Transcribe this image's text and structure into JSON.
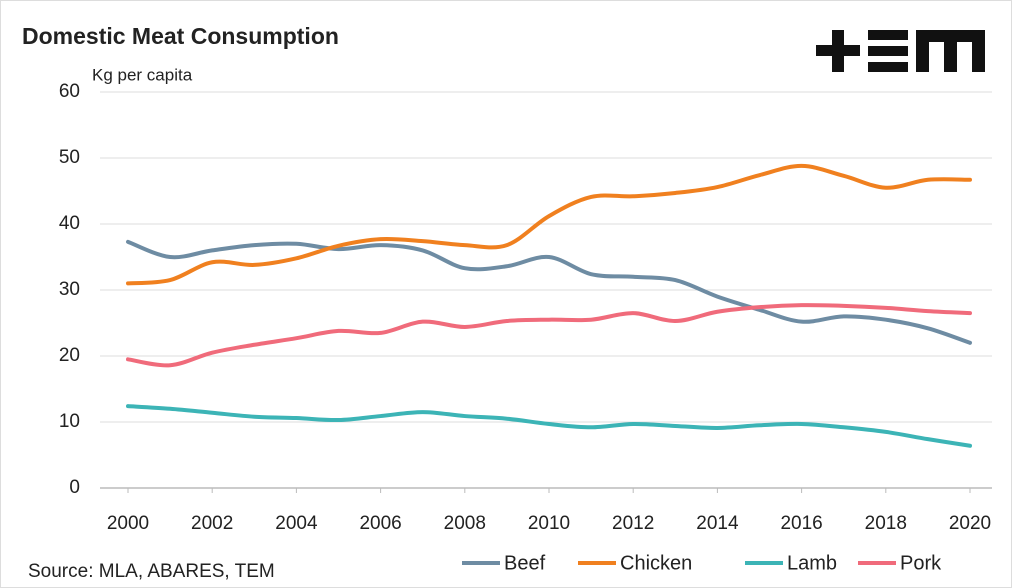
{
  "chart_data": {
    "type": "line",
    "title": "Domestic Meat Consumption",
    "y_label": "Kg per capita",
    "source": "Source: MLA, ABARES, TEM",
    "x": [
      2000,
      2001,
      2002,
      2003,
      2004,
      2005,
      2006,
      2007,
      2008,
      2009,
      2010,
      2011,
      2012,
      2013,
      2014,
      2015,
      2016,
      2017,
      2018,
      2019,
      2020
    ],
    "xlim": [
      2000,
      2020
    ],
    "xticks": [
      2000,
      2002,
      2004,
      2006,
      2008,
      2010,
      2012,
      2014,
      2016,
      2018,
      2020
    ],
    "ylim": [
      0,
      60
    ],
    "yticks": [
      0,
      10,
      20,
      30,
      40,
      50,
      60
    ],
    "grid": true,
    "legend": "bottom",
    "series": [
      {
        "name": "Beef",
        "color": "#6e8ca3",
        "values": [
          37.3,
          35,
          36,
          36.8,
          37,
          36.2,
          36.8,
          36,
          33.3,
          33.6,
          35,
          32.4,
          32,
          31.5,
          29,
          27,
          25.2,
          26,
          25.5,
          24.2,
          22
        ]
      },
      {
        "name": "Chicken",
        "color": "#f0801f",
        "values": [
          31,
          31.5,
          34.2,
          33.8,
          34.8,
          36.7,
          37.7,
          37.4,
          36.8,
          36.8,
          41.2,
          44.1,
          44.2,
          44.7,
          45.6,
          47.4,
          48.8,
          47.3,
          45.5,
          46.7,
          46.7
        ]
      },
      {
        "name": "Lamb",
        "color": "#3cb4b6",
        "values": [
          12.4,
          12,
          11.4,
          10.8,
          10.6,
          10.3,
          10.9,
          11.5,
          10.9,
          10.5,
          9.7,
          9.2,
          9.7,
          9.4,
          9.1,
          9.5,
          9.7,
          9.2,
          8.5,
          7.4,
          6.4
        ]
      },
      {
        "name": "Pork",
        "color": "#f06b7b",
        "values": [
          19.5,
          18.6,
          20.5,
          21.7,
          22.7,
          23.8,
          23.5,
          25.2,
          24.4,
          25.3,
          25.5,
          25.5,
          26.5,
          25.3,
          26.7,
          27.4,
          27.7,
          27.6,
          27.3,
          26.8,
          26.5
        ]
      }
    ]
  }
}
